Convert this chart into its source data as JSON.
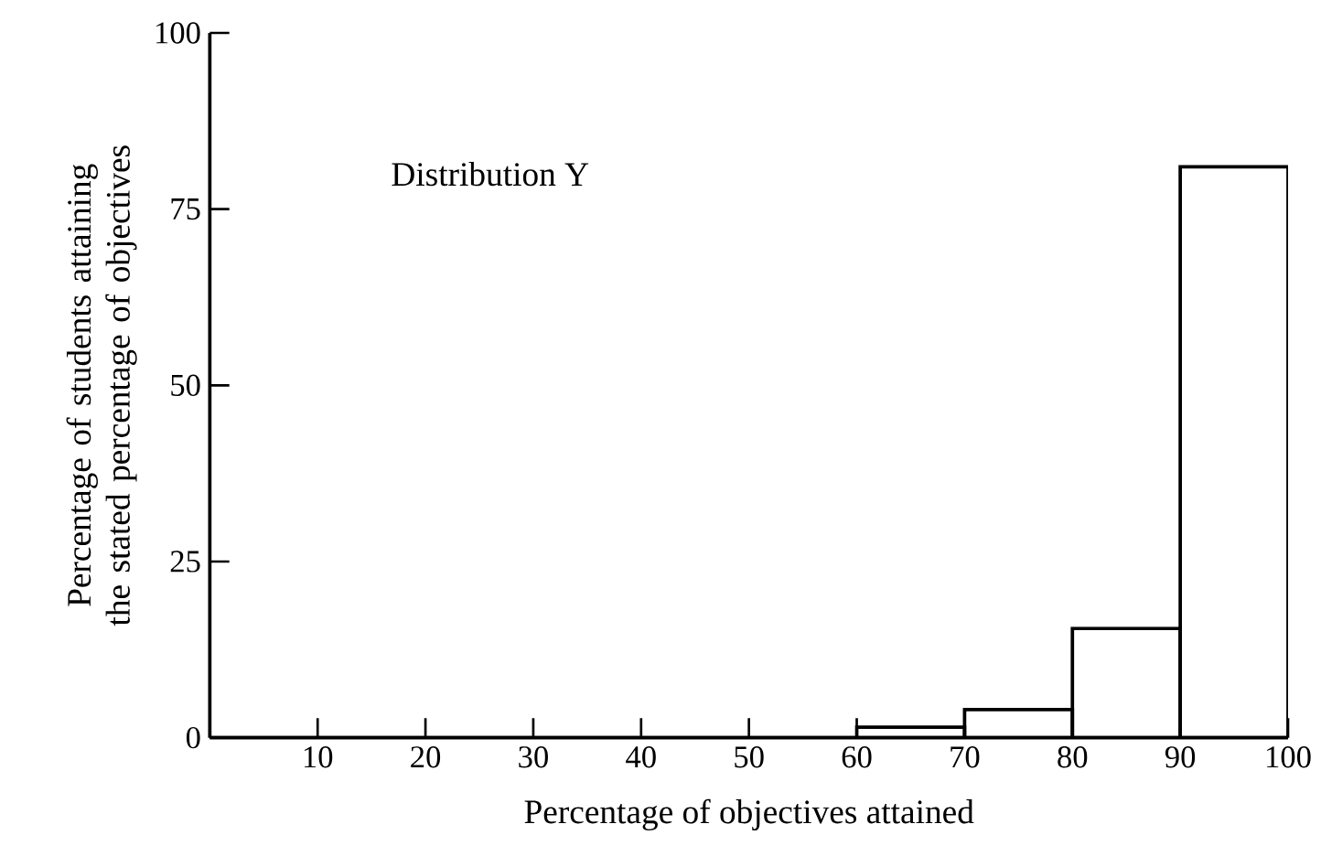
{
  "chart_data": {
    "type": "histogram",
    "title": "Distribution Y",
    "xlabel": "Percentage of objectives attained",
    "ylabel": "Percentage of students attaining the stated percentage of objectives",
    "bins": [
      0,
      10,
      20,
      30,
      40,
      50,
      60,
      70,
      80,
      90,
      100
    ],
    "values": [
      0,
      0,
      0,
      0,
      0,
      0,
      1.5,
      4,
      15.5,
      81
    ],
    "color": "#000000",
    "xlim": [
      0,
      100
    ],
    "xticks": [
      10,
      20,
      30,
      40,
      50,
      60,
      70,
      80,
      90,
      100
    ],
    "ylim": [
      0,
      100
    ],
    "yticks": [
      0,
      25,
      50,
      75,
      100
    ],
    "grid": false
  }
}
